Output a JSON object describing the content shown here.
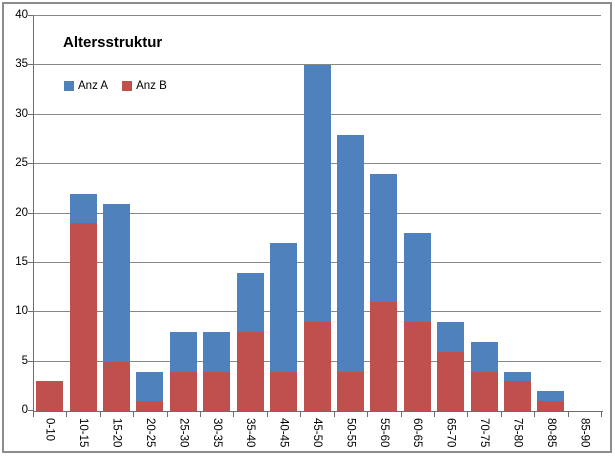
{
  "window": {
    "background": "#ffffff",
    "frame_border_color": "#8c8c8c"
  },
  "colors": {
    "gridline": "#878787",
    "axis": "#6d6d6d",
    "text": "#000000",
    "series_a_blue": "#4f81bd",
    "series_b_red": "#c0504d"
  },
  "chart_data": {
    "type": "bar",
    "stacked": true,
    "title": "Altersstruktur",
    "xlabel": "",
    "ylabel": "",
    "categories": [
      "0-10",
      "10-15",
      "15-20",
      "20-25",
      "25-30",
      "30-35",
      "35-40",
      "40-45",
      "45-50",
      "50-55",
      "55-60",
      "60-65",
      "65-70",
      "70-75",
      "75-80",
      "80-85",
      "85-90"
    ],
    "series": [
      {
        "name": "Anz A",
        "color": "#4f81bd",
        "values": [
          0,
          3,
          16,
          3,
          4,
          4,
          6,
          13,
          26,
          24,
          13,
          9,
          3,
          3,
          1,
          1,
          0
        ]
      },
      {
        "name": "Anz B",
        "color": "#c0504d",
        "values": [
          3,
          19,
          5,
          1,
          4,
          4,
          8,
          4,
          9,
          4,
          11,
          9,
          6,
          4,
          3,
          1,
          0
        ]
      }
    ],
    "stack_bottom_to_top": [
      1,
      0
    ],
    "stack_totals": [
      3,
      22,
      21,
      4,
      8,
      8,
      14,
      17,
      35,
      28,
      24,
      18,
      9,
      7,
      4,
      2,
      0
    ],
    "ylim": [
      0,
      40
    ],
    "ytick_step": 5,
    "yticks": [
      "0",
      "5",
      "10",
      "15",
      "20",
      "25",
      "30",
      "35",
      "40"
    ],
    "grid": true,
    "legend_position": "inside-top-left",
    "x_label_rotation_deg": 90
  }
}
